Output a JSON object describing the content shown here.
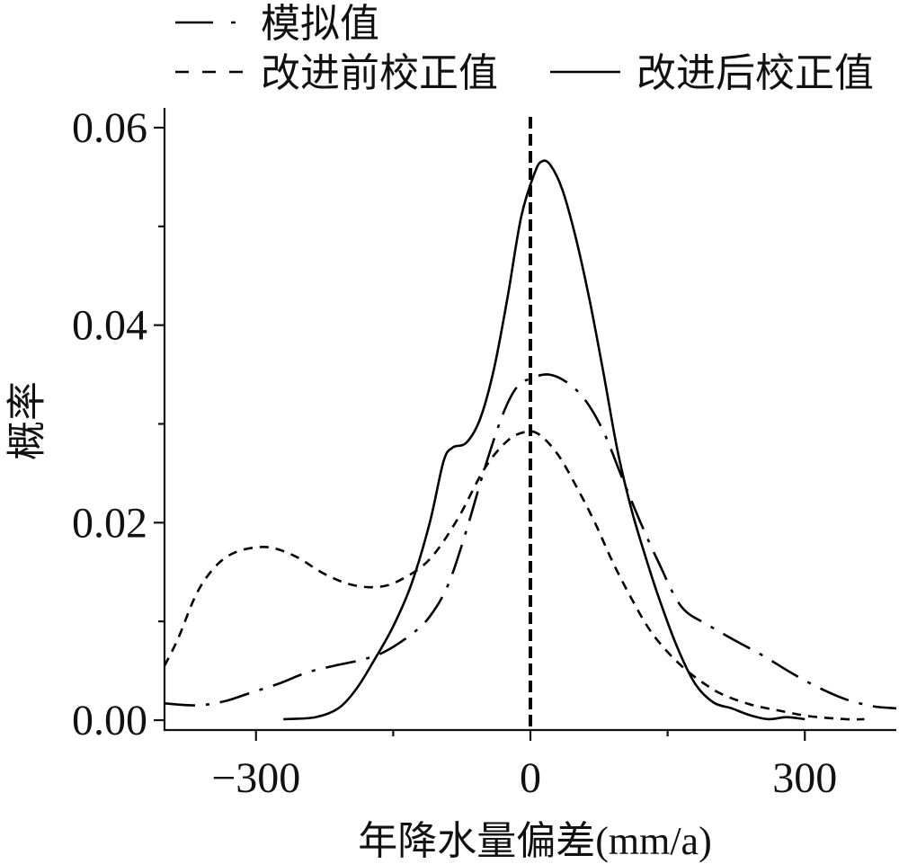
{
  "chart_data": {
    "type": "line",
    "title": "",
    "xlabel": "年降水量偏差(mm/a)",
    "ylabel": "概率",
    "xlim": [
      -400,
      400
    ],
    "ylim": [
      -0.001,
      0.062
    ],
    "xticks": [
      -300,
      0,
      300
    ],
    "xtick_labels": [
      "−300",
      "0",
      "300"
    ],
    "xminor_ticks": [
      -150,
      150
    ],
    "yticks": [
      0,
      0.02,
      0.04,
      0.06
    ],
    "ytick_labels": [
      "0.00",
      "0.02",
      "0.04",
      "0.06"
    ],
    "yminor_ticks": [
      0.01,
      0.03,
      0.05
    ],
    "grid": false,
    "legend_position": "top",
    "reference_line": {
      "x": 0,
      "style": "dashed",
      "color": "#000000"
    },
    "series": [
      {
        "name": "模拟值",
        "style": "dash-dot",
        "color": "#000000",
        "x": [
          -400,
          -365,
          -335,
          -305,
          -275,
          -245,
          -215,
          -185,
          -160,
          -130,
          -110,
          -90,
          -70,
          -50,
          -30,
          -15,
          0,
          20,
          40,
          60,
          80,
          100,
          120,
          140,
          165,
          195,
          225,
          255,
          285,
          315,
          345,
          375,
          400
        ],
        "y": [
          0.0017,
          0.0015,
          0.0019,
          0.0028,
          0.0037,
          0.0048,
          0.0055,
          0.0061,
          0.0069,
          0.0087,
          0.0105,
          0.0137,
          0.0192,
          0.0255,
          0.031,
          0.0337,
          0.0346,
          0.035,
          0.0342,
          0.0324,
          0.0292,
          0.0246,
          0.0201,
          0.016,
          0.0115,
          0.0096,
          0.008,
          0.0065,
          0.0048,
          0.0033,
          0.0021,
          0.0014,
          0.0012
        ]
      },
      {
        "name": "改进前校正值",
        "style": "dashed",
        "color": "#000000",
        "x": [
          -400,
          -385,
          -365,
          -345,
          -325,
          -300,
          -280,
          -255,
          -225,
          -195,
          -165,
          -140,
          -110,
          -80,
          -50,
          -25,
          -5,
          10,
          30,
          50,
          70,
          90,
          110,
          130,
          150,
          170,
          190,
          210,
          240,
          270,
          305,
          345,
          365
        ],
        "y": [
          0.0055,
          0.0083,
          0.0128,
          0.0155,
          0.0169,
          0.0175,
          0.0174,
          0.0165,
          0.0148,
          0.0137,
          0.0135,
          0.0143,
          0.0163,
          0.0203,
          0.0255,
          0.0283,
          0.0292,
          0.0289,
          0.0269,
          0.0237,
          0.0201,
          0.016,
          0.0124,
          0.0092,
          0.0069,
          0.0051,
          0.0037,
          0.0026,
          0.0016,
          0.001,
          0.0004,
          0.0001,
          0.0001
        ]
      },
      {
        "name": "改进后校正值",
        "style": "solid",
        "color": "#000000",
        "x": [
          -270,
          -235,
          -210,
          -190,
          -170,
          -150,
          -130,
          -110,
          -95,
          -85,
          -70,
          -55,
          -40,
          -25,
          -10,
          5,
          13,
          22,
          35,
          50,
          65,
          80,
          95,
          110,
          125,
          140,
          160,
          180,
          200,
          220,
          240,
          260,
          280,
          300
        ],
        "y": [
          0.0001,
          0.0003,
          0.0012,
          0.0032,
          0.0062,
          0.0095,
          0.0138,
          0.02,
          0.0262,
          0.0276,
          0.0281,
          0.0305,
          0.0355,
          0.0428,
          0.051,
          0.0555,
          0.0566,
          0.0562,
          0.0537,
          0.0487,
          0.0424,
          0.0351,
          0.0274,
          0.0215,
          0.0168,
          0.0125,
          0.0075,
          0.0037,
          0.0018,
          0.0012,
          0.0005,
          0.0001,
          0.0003,
          0.0001
        ]
      }
    ]
  }
}
